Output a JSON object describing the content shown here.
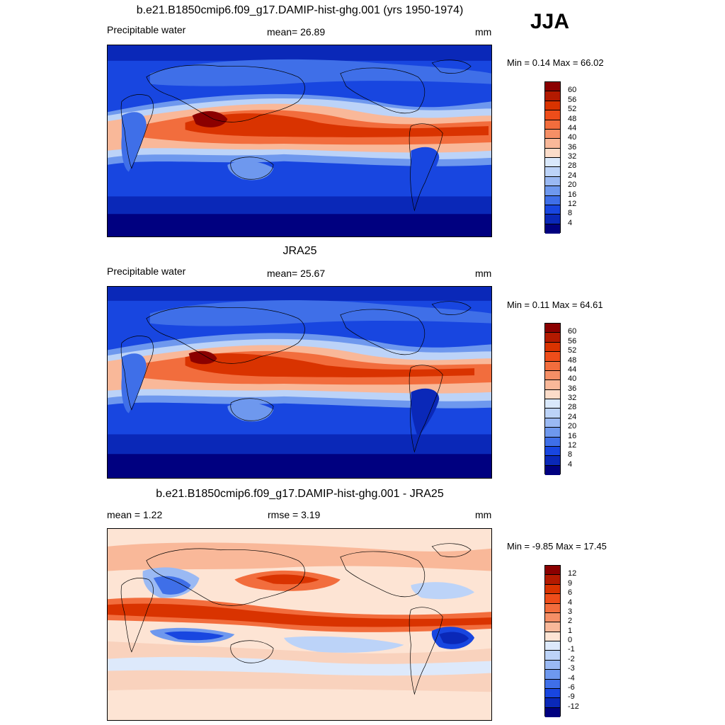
{
  "season": "JJA",
  "panels": [
    {
      "title": "b.e21.B1850cmip6.f09_g17.DAMIP-hist-ghg.001 (yrs 1950-1974)",
      "left": "Precipitable water",
      "center": "mean=  26.89",
      "units": "mm",
      "minmax": "Min =   0.14 Max =  66.02",
      "labels": [
        "60",
        "56",
        "52",
        "48",
        "44",
        "40",
        "36",
        "32",
        "28",
        "24",
        "20",
        "16",
        "12",
        "8",
        "4"
      ],
      "colors": [
        "#8b0000",
        "#b31a00",
        "#d93300",
        "#ee4d1a",
        "#f26d3d",
        "#f58f66",
        "#f9b899",
        "#fbdcc9",
        "#d9e8fb",
        "#bcd3f8",
        "#9ab9f3",
        "#6e98ee",
        "#3f6fe8",
        "#1846e0",
        "#0a28b8",
        "#000080"
      ]
    },
    {
      "title": "JRA25",
      "left": "Precipitable water",
      "center": "mean=  25.67",
      "units": "mm",
      "minmax": "Min =   0.11 Max =  64.61",
      "labels": [
        "60",
        "56",
        "52",
        "48",
        "44",
        "40",
        "36",
        "32",
        "28",
        "24",
        "20",
        "16",
        "12",
        "8",
        "4"
      ],
      "colors": [
        "#8b0000",
        "#b31a00",
        "#d93300",
        "#ee4d1a",
        "#f26d3d",
        "#f58f66",
        "#f9b899",
        "#fbdcc9",
        "#d9e8fb",
        "#bcd3f8",
        "#9ab9f3",
        "#6e98ee",
        "#3f6fe8",
        "#1846e0",
        "#0a28b8",
        "#000080"
      ]
    },
    {
      "title": "b.e21.B1850cmip6.f09_g17.DAMIP-hist-ghg.001 - JRA25",
      "left": "mean =    1.22",
      "center": "rmse =    3.19",
      "units": "mm",
      "minmax": "Min =  -9.85 Max =  17.45",
      "labels": [
        "12",
        "9",
        "6",
        "4",
        "3",
        "2",
        "1",
        "0",
        "-1",
        "-2",
        "-3",
        "-4",
        "-6",
        "-9",
        "-12"
      ],
      "colors": [
        "#8b0000",
        "#b31a00",
        "#d93300",
        "#ee4d1a",
        "#f26d3d",
        "#f58f66",
        "#f9b899",
        "#fde4d4",
        "#dde9fb",
        "#bcd3f8",
        "#9ab9f3",
        "#6e98ee",
        "#3f6fe8",
        "#1846e0",
        "#0a28b8",
        "#000080"
      ]
    }
  ]
}
